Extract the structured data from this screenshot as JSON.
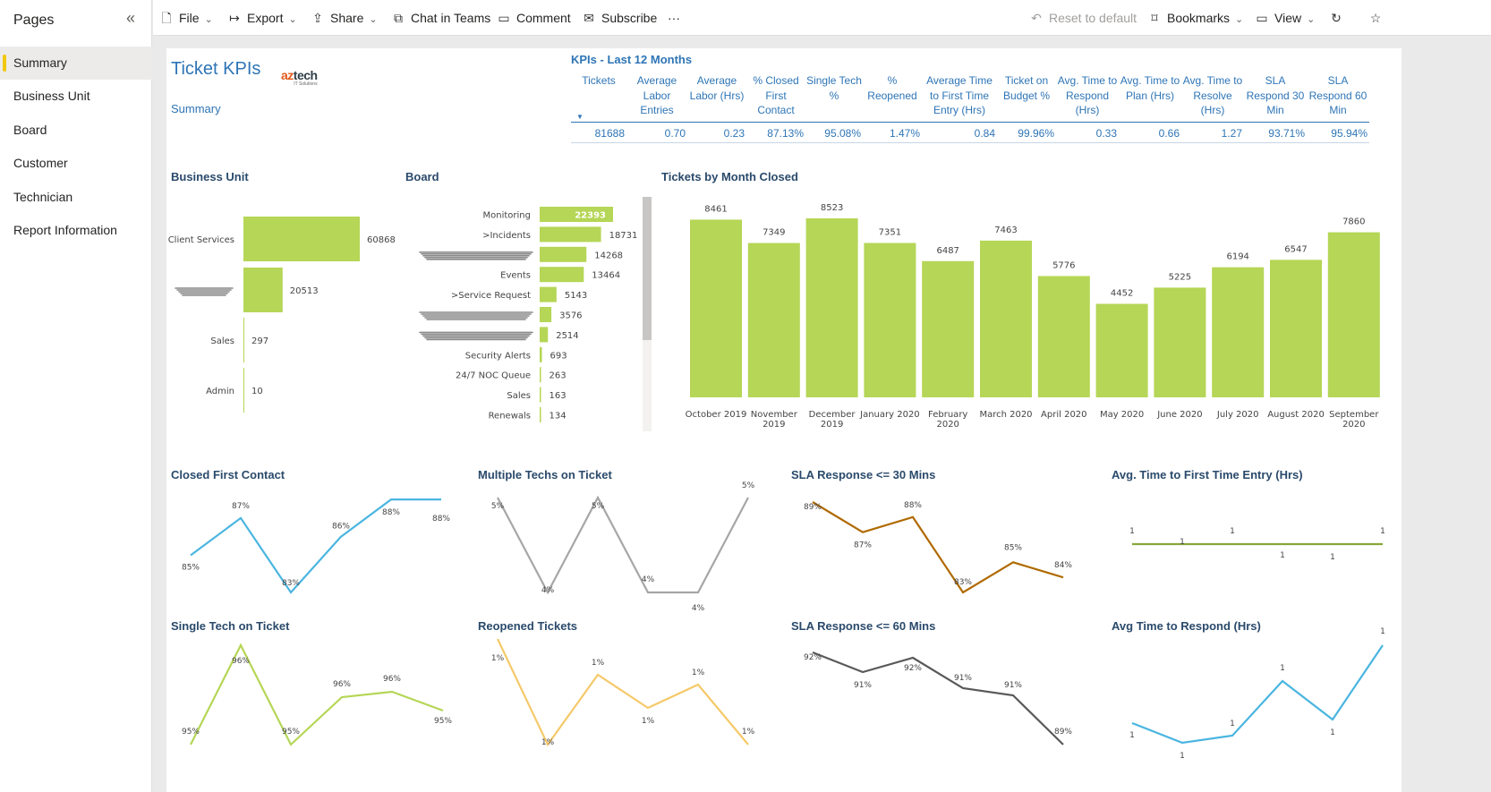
{
  "sidebar": {
    "title": "Pages",
    "collapse_icon": "double-chevron-left-icon",
    "items": [
      {
        "label": "Summary",
        "active": true
      },
      {
        "label": "Business Unit"
      },
      {
        "label": "Board"
      },
      {
        "label": "Customer"
      },
      {
        "label": "Technician"
      },
      {
        "label": "Report Information"
      }
    ]
  },
  "toolbar": {
    "file": "File",
    "export": "Export",
    "share": "Share",
    "chat": "Chat in Teams",
    "comment": "Comment",
    "subscribe": "Subscribe",
    "more": "···",
    "reset": "Reset to default",
    "bookmarks": "Bookmarks",
    "view": "View"
  },
  "report": {
    "title": "Ticket KPIs",
    "subtitle": "Summary",
    "logo_primary": "az",
    "logo_secondary": "tech",
    "logo_tag": "IT Solutions"
  },
  "kpi": {
    "title": "KPIs - Last 12 Months",
    "columns": [
      {
        "header": "Tickets",
        "value": "81688"
      },
      {
        "header": "Average Labor Entries",
        "value": "0.70"
      },
      {
        "header": "Average Labor (Hrs)",
        "value": "0.23"
      },
      {
        "header": "% Closed First Contact",
        "value": "87.13%"
      },
      {
        "header": "Single Tech %",
        "value": "95.08%"
      },
      {
        "header": "% Reopened",
        "value": "1.47%"
      },
      {
        "header": "Average Time to First Time Entry (Hrs)",
        "value": "0.84"
      },
      {
        "header": "Ticket on Budget %",
        "value": "99.96%"
      },
      {
        "header": "Avg. Time to Respond (Hrs)",
        "value": "0.33"
      },
      {
        "header": "Avg. Time to Plan (Hrs)",
        "value": "0.66"
      },
      {
        "header": "Avg. Time to Resolve (Hrs)",
        "value": "1.27"
      },
      {
        "header": "SLA Respond 30 Min",
        "value": "93.71%"
      },
      {
        "header": "SLA Respond 60 Min",
        "value": "95.94%"
      }
    ]
  },
  "colors": {
    "accent": "#2e75b6",
    "bar": "#b5d656",
    "line_blue": "#4ab5e0",
    "line_gray": "#a6a6a6",
    "line_brown": "#b06a00",
    "line_olive": "#86a83a",
    "line_lime": "#b5d656",
    "line_yellow": "#f5c96a",
    "line_dark": "#595959"
  },
  "chart_data": [
    {
      "id": "business-unit",
      "type": "bar",
      "orientation": "horizontal",
      "title": "Business Unit",
      "categories": [
        "Client Services",
        "",
        "Sales",
        "Admin"
      ],
      "values": [
        60868,
        20513,
        297,
        10
      ]
    },
    {
      "id": "board",
      "type": "bar",
      "orientation": "horizontal",
      "title": "Board",
      "categories": [
        "Monitoring",
        ">Incidents",
        "",
        "Events",
        ">Service Request",
        "",
        "",
        "Security Alerts",
        "24/7 NOC Queue",
        "Sales",
        "Renewals"
      ],
      "values": [
        22393,
        18731,
        14268,
        13464,
        5143,
        3576,
        2514,
        693,
        263,
        163,
        134
      ]
    },
    {
      "id": "tickets-by-month",
      "type": "bar",
      "title": "Tickets by Month Closed",
      "categories": [
        "October 2019",
        "November 2019",
        "December 2019",
        "January 2020",
        "February 2020",
        "March 2020",
        "April 2020",
        "May 2020",
        "June 2020",
        "July 2020",
        "August 2020",
        "September 2020"
      ],
      "values": [
        8461,
        7349,
        8523,
        7351,
        6487,
        7463,
        5776,
        4452,
        5225,
        6194,
        6547,
        7860
      ]
    },
    {
      "id": "closed-first-contact",
      "type": "line",
      "title": "Closed First Contact",
      "values": [
        85,
        87,
        83,
        86,
        88,
        88
      ],
      "labels": [
        "85%",
        "87%",
        "83%",
        "86%",
        "88%",
        "88%"
      ]
    },
    {
      "id": "multiple-techs",
      "type": "line",
      "title": "Multiple Techs on Ticket",
      "values": [
        5,
        4,
        5,
        4,
        4,
        5
      ],
      "labels": [
        "5%",
        "4%",
        "5%",
        "4%",
        "4%",
        "5%"
      ]
    },
    {
      "id": "sla-30",
      "type": "line",
      "title": "SLA Response <= 30 Mins",
      "values": [
        89,
        87,
        88,
        83,
        85,
        84
      ],
      "labels": [
        "89%",
        "87%",
        "88%",
        "83%",
        "85%",
        "84%"
      ]
    },
    {
      "id": "first-time-entry",
      "type": "line",
      "title": "Avg. Time to First Time Entry (Hrs)",
      "values": [
        1,
        1,
        1,
        1,
        1,
        1
      ],
      "labels": [
        "1",
        "1",
        "1",
        "1",
        "1",
        "1"
      ]
    },
    {
      "id": "single-tech",
      "type": "line",
      "title": "Single Tech on Ticket",
      "values": [
        95,
        96,
        95,
        96,
        96,
        95
      ],
      "labels": [
        "95%",
        "96%",
        "95%",
        "96%",
        "96%",
        "95%"
      ]
    },
    {
      "id": "reopened",
      "type": "line",
      "title": "Reopened Tickets",
      "values": [
        1,
        1,
        1,
        1,
        1,
        1
      ],
      "labels": [
        "1%",
        "1%",
        "1%",
        "1%",
        "1%",
        "1%"
      ]
    },
    {
      "id": "sla-60",
      "type": "line",
      "title": "SLA Response <= 60 Mins",
      "values": [
        92,
        91,
        92,
        91,
        91,
        89
      ],
      "labels": [
        "92%",
        "91%",
        "92%",
        "91%",
        "91%",
        "89%"
      ]
    },
    {
      "id": "time-to-respond",
      "type": "line",
      "title": "Avg Time to Respond (Hrs)",
      "values": [
        1,
        1,
        1,
        1,
        1,
        1
      ],
      "labels": [
        "1",
        "1",
        "1",
        "1",
        "1",
        "1"
      ]
    }
  ]
}
